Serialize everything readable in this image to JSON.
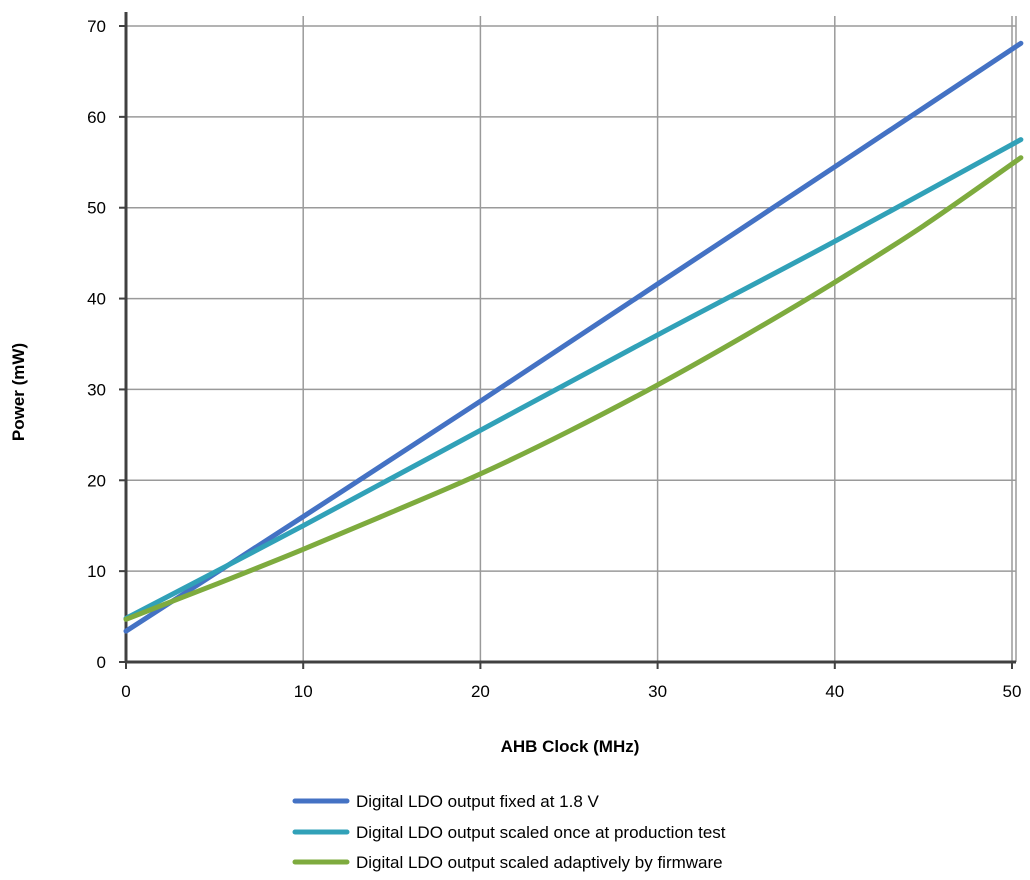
{
  "chart_data": {
    "type": "line",
    "xlabel": "AHB Clock (MHz)",
    "ylabel": "Power (mW)",
    "xlim": [
      0,
      50
    ],
    "ylim": [
      0,
      70
    ],
    "xticks": [
      0,
      10,
      20,
      30,
      40,
      50
    ],
    "yticks": [
      0,
      10,
      20,
      30,
      40,
      50,
      60,
      70
    ],
    "grid": true,
    "legend_position": "bottom",
    "series": [
      {
        "name": "Digital LDO output fixed at 1.8 V",
        "color": "#4472C4",
        "x": [
          0,
          10,
          20,
          30,
          40,
          50.5
        ],
        "y": [
          3.4,
          16.0,
          28.7,
          41.6,
          54.5,
          68.1
        ]
      },
      {
        "name": "Digital LDO output scaled once at production test",
        "color": "#31A1B8",
        "x": [
          0,
          10,
          20,
          30,
          40,
          50.5
        ],
        "y": [
          4.8,
          15.0,
          25.5,
          36.0,
          46.3,
          57.5
        ]
      },
      {
        "name": "Digital LDO output scaled adaptively by firmware",
        "color": "#7EAB3E",
        "x": [
          0,
          5,
          10,
          15,
          20,
          25,
          30,
          35,
          40,
          45,
          50.5
        ],
        "y": [
          4.7,
          8.5,
          12.4,
          16.5,
          20.7,
          25.4,
          30.5,
          36.0,
          41.8,
          48.0,
          55.5
        ]
      }
    ]
  }
}
